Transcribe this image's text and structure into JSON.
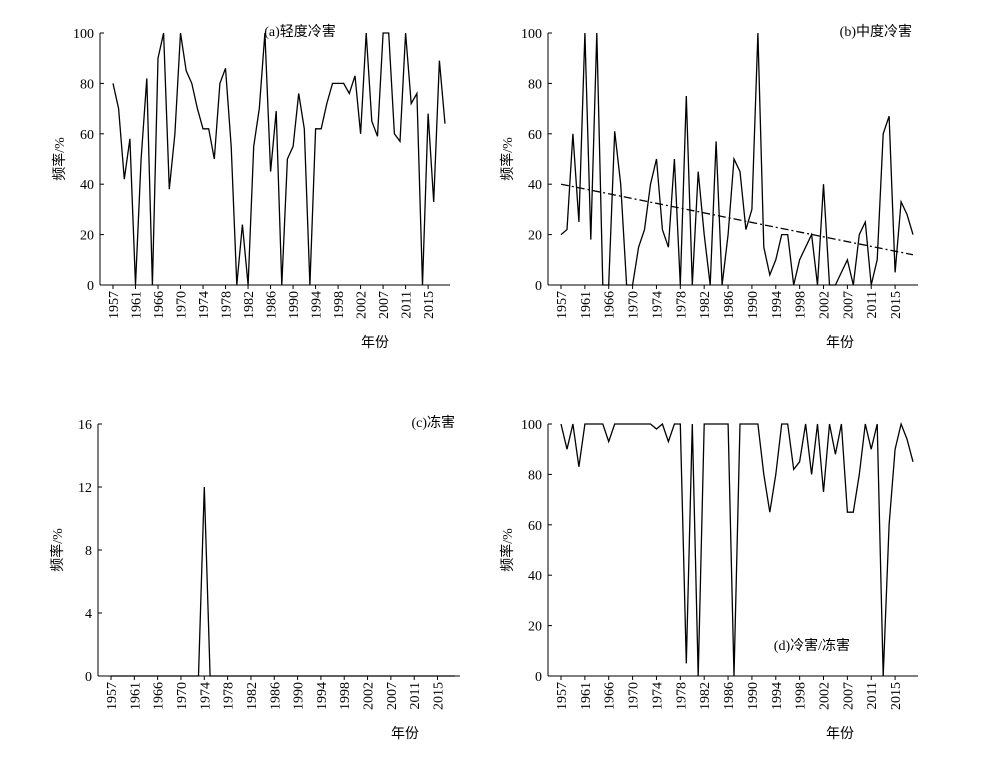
{
  "chart_data": [
    {
      "type": "line",
      "title": "(a)轻度冷害",
      "ylabel": "频率/%",
      "xlabel": "年份",
      "categories": [
        "1957",
        null,
        null,
        null,
        "1961",
        null,
        null,
        null,
        "1966",
        null,
        null,
        null,
        "1970",
        null,
        null,
        null,
        "1974",
        null,
        null,
        null,
        "1978",
        null,
        null,
        null,
        "1982",
        null,
        null,
        null,
        "1986",
        null,
        null,
        null,
        "1990",
        null,
        null,
        null,
        "1994",
        null,
        null,
        null,
        "1998",
        null,
        null,
        null,
        "2002",
        null,
        null,
        null,
        "2007",
        null,
        null,
        null,
        "2011",
        null,
        null,
        null,
        "2015",
        null,
        null,
        null
      ],
      "series": [
        {
          "color": "#000000",
          "values": [
            80,
            70,
            42,
            58,
            0,
            50,
            82,
            0,
            90,
            100,
            38,
            60,
            100,
            85,
            80,
            70,
            62,
            62,
            50,
            80,
            86,
            55,
            0,
            24,
            0,
            55,
            70,
            100,
            45,
            69,
            0,
            50,
            55,
            76,
            62,
            0,
            62,
            62,
            72,
            80,
            80,
            80,
            76,
            83,
            60,
            100,
            65,
            59,
            100,
            100,
            60,
            57,
            100,
            72,
            76,
            0,
            68,
            33,
            89,
            64
          ]
        }
      ],
      "ylim": [
        0,
        100
      ],
      "yticks": [
        0,
        20,
        40,
        60,
        80,
        100
      ]
    },
    {
      "type": "line",
      "title": "(b)中度冷害",
      "ylabel": "频率/%",
      "xlabel": "年份",
      "categories": [
        "1957",
        null,
        null,
        null,
        "1961",
        null,
        null,
        null,
        "1966",
        null,
        null,
        null,
        "1970",
        null,
        null,
        null,
        "1974",
        null,
        null,
        null,
        "1978",
        null,
        null,
        null,
        "1982",
        null,
        null,
        null,
        "1986",
        null,
        null,
        null,
        "1990",
        null,
        null,
        null,
        "1994",
        null,
        null,
        null,
        "1998",
        null,
        null,
        null,
        "2002",
        null,
        null,
        null,
        "2007",
        null,
        null,
        null,
        "2011",
        null,
        null,
        null,
        "2015",
        null,
        null,
        null
      ],
      "series": [
        {
          "color": "#000000",
          "values": [
            20,
            22,
            60,
            25,
            100,
            18,
            100,
            0,
            0,
            61,
            40,
            0,
            0,
            15,
            22,
            40,
            50,
            22,
            15,
            50,
            0,
            75,
            0,
            45,
            20,
            0,
            57,
            0,
            20,
            50,
            45,
            22,
            30,
            100,
            15,
            4,
            10,
            20,
            20,
            0,
            10,
            15,
            20,
            0,
            40,
            0,
            0,
            5,
            10,
            0,
            20,
            25,
            0,
            10,
            60,
            67,
            5,
            33,
            28,
            20
          ]
        }
      ],
      "trend": {
        "values": [
          40,
          12
        ],
        "style": "dashdot"
      },
      "ylim": [
        0,
        100
      ],
      "yticks": [
        0,
        20,
        40,
        60,
        80,
        100
      ]
    },
    {
      "type": "line",
      "title": "(c)冻害",
      "ylabel": "频率/%",
      "xlabel": "年份",
      "categories": [
        "1957",
        null,
        null,
        null,
        "1961",
        null,
        null,
        null,
        "1966",
        null,
        null,
        null,
        "1970",
        null,
        null,
        null,
        "1974",
        null,
        null,
        null,
        "1978",
        null,
        null,
        null,
        "1982",
        null,
        null,
        null,
        "1986",
        null,
        null,
        null,
        "1990",
        null,
        null,
        null,
        "1994",
        null,
        null,
        null,
        "1998",
        null,
        null,
        null,
        "2002",
        null,
        null,
        null,
        "2007",
        null,
        null,
        null,
        "2011",
        null,
        null,
        null,
        "2015",
        null,
        null,
        null
      ],
      "series": [
        {
          "color": "#000000",
          "values": [
            0,
            0,
            0,
            0,
            0,
            0,
            0,
            0,
            0,
            0,
            0,
            0,
            0,
            0,
            0,
            0,
            12,
            0,
            0,
            0,
            0,
            0,
            0,
            0,
            0,
            0,
            0,
            0,
            0,
            0,
            0,
            0,
            0,
            0,
            0,
            0,
            0,
            0,
            0,
            0,
            0,
            0,
            0,
            0,
            0,
            0,
            0,
            0,
            0,
            0,
            0,
            0,
            0,
            0,
            0,
            0,
            0,
            0,
            0,
            0
          ]
        }
      ],
      "ylim": [
        0,
        16
      ],
      "yticks": [
        0,
        4,
        8,
        12,
        16
      ]
    },
    {
      "type": "line",
      "title": "(d)冷害/冻害",
      "ylabel": "频率/%",
      "xlabel": "年份",
      "categories": [
        "1957",
        null,
        null,
        null,
        "1961",
        null,
        null,
        null,
        "1966",
        null,
        null,
        null,
        "1970",
        null,
        null,
        null,
        "1974",
        null,
        null,
        null,
        "1978",
        null,
        null,
        null,
        "1982",
        null,
        null,
        null,
        "1986",
        null,
        null,
        null,
        "1990",
        null,
        null,
        null,
        "1994",
        null,
        null,
        null,
        "1998",
        null,
        null,
        null,
        "2002",
        null,
        null,
        null,
        "2007",
        null,
        null,
        null,
        "2011",
        null,
        null,
        null,
        "2015",
        null,
        null,
        null
      ],
      "series": [
        {
          "color": "#000000",
          "values": [
            100,
            90,
            100,
            83,
            100,
            100,
            100,
            100,
            93,
            100,
            100,
            100,
            100,
            100,
            100,
            100,
            98,
            100,
            93,
            100,
            100,
            5,
            100,
            0,
            100,
            100,
            100,
            100,
            100,
            0,
            100,
            100,
            100,
            100,
            80,
            65,
            80,
            100,
            100,
            82,
            85,
            100,
            80,
            100,
            73,
            100,
            88,
            100,
            65,
            65,
            80,
            100,
            90,
            100,
            0,
            60,
            90,
            100,
            94,
            85
          ]
        }
      ],
      "ylim": [
        0,
        100
      ],
      "yticks": [
        0,
        20,
        40,
        60,
        80,
        100
      ]
    }
  ]
}
